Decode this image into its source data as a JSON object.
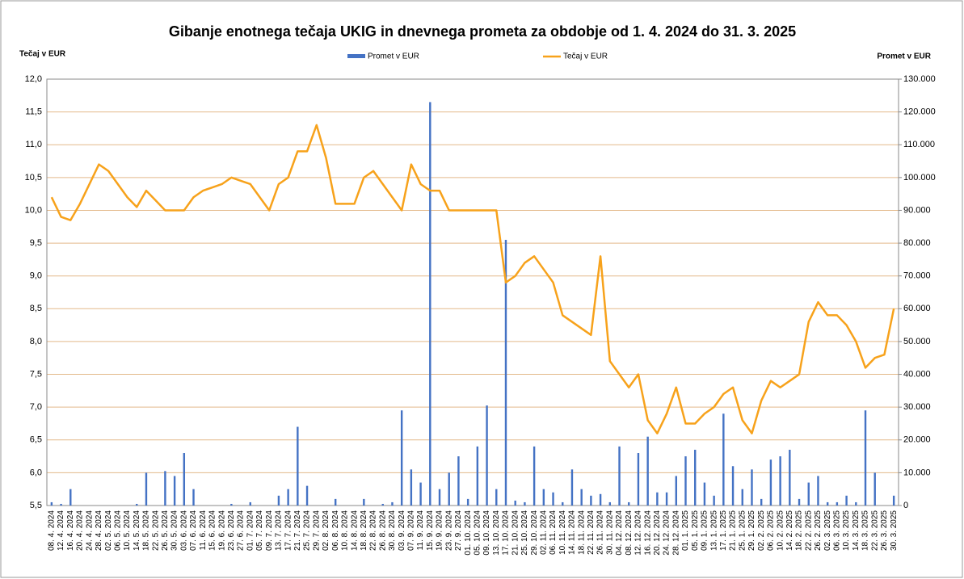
{
  "chart_data": {
    "type": "bar-line",
    "title": "Gibanje enotnega tečaja UKIG in dnevnega prometa za obdobje od 1. 4. 2024 do 31. 3. 2025",
    "y_label": "Tečaj v EUR",
    "y2_label": "Promet v EUR",
    "categories": [
      "08. 4. 2024",
      "12. 4. 2024",
      "16. 4. 2024",
      "20. 4. 2024",
      "24. 4. 2024",
      "28. 4. 2024",
      "02. 5. 2024",
      "06. 5. 2024",
      "10. 5. 2024",
      "14. 5. 2024",
      "18. 5. 2024",
      "22. 5. 2024",
      "26. 5. 2024",
      "30. 5. 2024",
      "03. 6. 2024",
      "07. 6. 2024",
      "11. 6. 2024",
      "15. 6. 2024",
      "19. 6. 2024",
      "23. 6. 2024",
      "27. 6. 2024",
      "01. 7. 2024",
      "05. 7. 2024",
      "09. 7. 2024",
      "13. 7. 2024",
      "17. 7. 2024",
      "21. 7. 2024",
      "25. 7. 2024",
      "29. 7. 2024",
      "02. 8. 2024",
      "06. 8. 2024",
      "10. 8. 2024",
      "14. 8. 2024",
      "18. 8. 2024",
      "22. 8. 2024",
      "26. 8. 2024",
      "30. 8. 2024",
      "03. 9. 2024",
      "07. 9. 2024",
      "11. 9. 2024",
      "15. 9. 2024",
      "19. 9. 2024",
      "23. 9. 2024",
      "27. 9. 2024",
      "01. 10. 2024",
      "05. 10. 2024",
      "09. 10. 2024",
      "13. 10. 2024",
      "17. 10. 2024",
      "21. 10. 2024",
      "25. 10. 2024",
      "29. 10. 2024",
      "02. 11. 2024",
      "06. 11. 2024",
      "10. 11. 2024",
      "14. 11. 2024",
      "18. 11. 2024",
      "22. 11. 2024",
      "26. 11. 2024",
      "30. 11. 2024",
      "04. 12. 2024",
      "08. 12. 2024",
      "12. 12. 2024",
      "16. 12. 2024",
      "20. 12. 2024",
      "24. 12. 2024",
      "28. 12. 2024",
      "01. 1. 2025",
      "05. 1. 2025",
      "09. 1. 2025",
      "13. 1. 2025",
      "17. 1. 2025",
      "21. 1. 2025",
      "25. 1. 2025",
      "29. 1. 2025",
      "02. 2. 2025",
      "06. 2. 2025",
      "10. 2. 2025",
      "14. 2. 2025",
      "18. 2. 2025",
      "22. 2. 2025",
      "26. 2. 2025",
      "02. 3. 2025",
      "06. 3. 2025",
      "10. 3. 2025",
      "14. 3. 2025",
      "18. 3. 2025",
      "22. 3. 2025",
      "26. 3. 2025",
      "30. 3. 2025"
    ],
    "series": [
      {
        "name": "Promet v EUR",
        "kind": "bar",
        "axis": "y2",
        "color": "#4472c4",
        "values": [
          1000,
          500,
          5000,
          0,
          0,
          0,
          0,
          0,
          0,
          500,
          10000,
          0,
          10500,
          9000,
          16000,
          5000,
          0,
          0,
          0,
          500,
          0,
          1000,
          0,
          0,
          3000,
          5000,
          24000,
          6000,
          0,
          0,
          2000,
          0,
          0,
          2000,
          0,
          500,
          1000,
          29000,
          11000,
          7000,
          123000,
          5000,
          10000,
          15000,
          2000,
          18000,
          30500,
          5000,
          81000,
          1500,
          1000,
          18000,
          5000,
          4000,
          1000,
          11000,
          5000,
          3000,
          3500,
          1000,
          18000,
          1000,
          16000,
          21000,
          4000,
          4000,
          9000,
          15000,
          17000,
          7000,
          3000,
          28000,
          12000,
          5000,
          11000,
          2000,
          14000,
          15000,
          17000,
          2000,
          7000,
          9000,
          1000,
          1000,
          3000,
          1000,
          29000,
          10000,
          0,
          3000
        ]
      },
      {
        "name": "Tečaj v EUR",
        "kind": "line",
        "axis": "y",
        "color": "#f7a21b",
        "values": [
          10.2,
          9.9,
          9.85,
          10.1,
          10.4,
          10.7,
          10.6,
          10.4,
          10.2,
          10.05,
          10.3,
          10.15,
          10.0,
          10.0,
          10.0,
          10.2,
          10.3,
          10.35,
          10.4,
          10.5,
          10.45,
          10.4,
          10.2,
          10.0,
          10.4,
          10.5,
          10.9,
          10.9,
          11.3,
          10.8,
          10.1,
          10.1,
          10.1,
          10.5,
          10.6,
          10.4,
          10.2,
          10.0,
          10.7,
          10.4,
          10.3,
          10.3,
          10.0,
          10.0,
          10.0,
          10.0,
          10.0,
          10.0,
          8.9,
          9.0,
          9.2,
          9.3,
          9.1,
          8.9,
          8.4,
          8.3,
          8.2,
          8.1,
          9.3,
          7.7,
          7.5,
          7.3,
          7.5,
          6.8,
          6.6,
          6.9,
          7.3,
          6.75,
          6.75,
          6.9,
          7.0,
          7.2,
          7.3,
          6.8,
          6.6,
          7.1,
          7.4,
          7.3,
          7.4,
          7.5,
          8.3,
          8.6,
          8.4,
          8.4,
          8.25,
          8.0,
          7.6,
          7.75,
          7.8,
          8.5
        ]
      }
    ],
    "ylim": [
      5.5,
      12.0
    ],
    "yticks": [
      {
        "value": 5.5,
        "label": "5,5"
      },
      {
        "value": 6.0,
        "label": "6,0"
      },
      {
        "value": 6.5,
        "label": "6,5"
      },
      {
        "value": 7.0,
        "label": "7,0"
      },
      {
        "value": 7.5,
        "label": "7,5"
      },
      {
        "value": 8.0,
        "label": "8,0"
      },
      {
        "value": 8.5,
        "label": "8,5"
      },
      {
        "value": 9.0,
        "label": "9,0"
      },
      {
        "value": 9.5,
        "label": "9,5"
      },
      {
        "value": 10.0,
        "label": "10,0"
      },
      {
        "value": 10.5,
        "label": "10,5"
      },
      {
        "value": 11.0,
        "label": "11,0"
      },
      {
        "value": 11.5,
        "label": "11,5"
      },
      {
        "value": 12.0,
        "label": "12,0"
      }
    ],
    "y2lim": [
      0,
      130000
    ],
    "y2ticks": [
      0,
      {
        "value": 10000,
        "label": "10.000"
      },
      {
        "value": 20000,
        "label": "20.000"
      },
      {
        "value": 30000,
        "label": "30.000"
      },
      {
        "value": 40000,
        "label": "40.000"
      },
      {
        "value": 50000,
        "label": "50.000"
      },
      {
        "value": 60000,
        "label": "60.000"
      },
      {
        "value": 70000,
        "label": "70.000"
      },
      {
        "value": 80000,
        "label": "80.000"
      },
      {
        "value": 90000,
        "label": "90.000"
      },
      {
        "value": 100000,
        "label": "100.000"
      },
      {
        "value": 110000,
        "label": "110.000"
      },
      {
        "value": 120000,
        "label": "120.000"
      },
      {
        "value": 130000,
        "label": "130.000"
      }
    ],
    "grid": true,
    "legend": "top"
  }
}
